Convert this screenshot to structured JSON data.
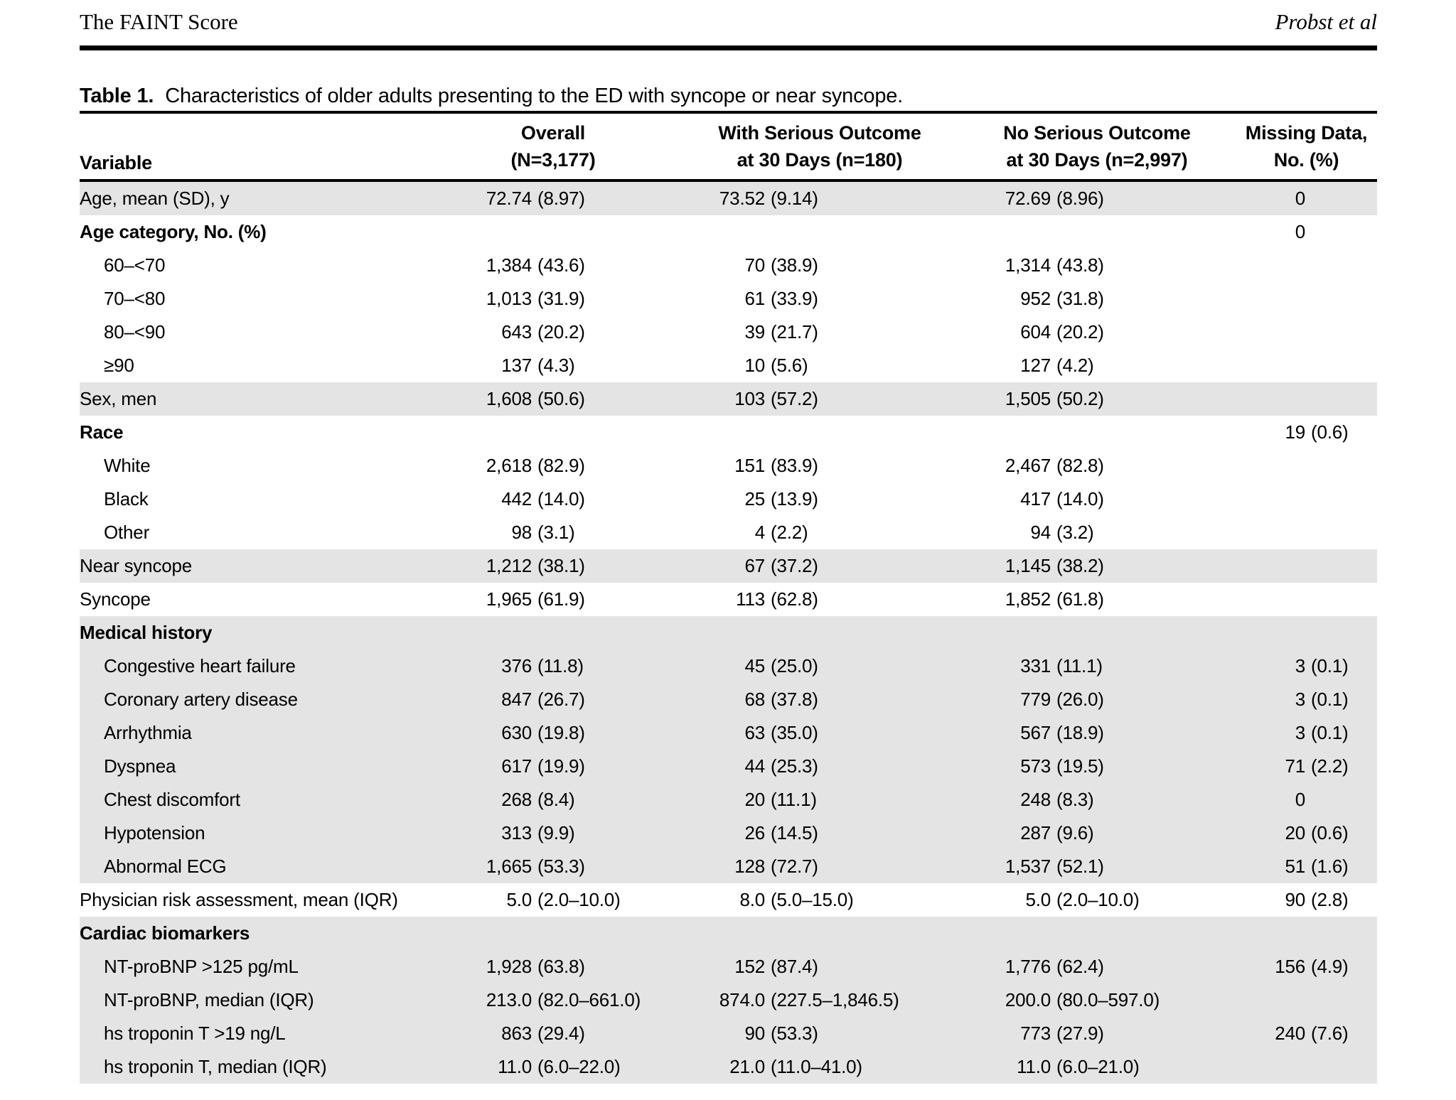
{
  "page": {
    "running_head_left": "The FAINT Score",
    "running_head_right": "Probst et al",
    "caption_label": "Table 1.",
    "caption_text": "Characteristics of older adults presenting to the ED with syncope or near syncope."
  },
  "colors": {
    "row_shade": "#e4e4e4",
    "rule": "#000000",
    "text": "#000000"
  },
  "table": {
    "columns": [
      {
        "line1": "",
        "line2": "Variable"
      },
      {
        "line1": "Overall",
        "line2": "(N=3,177)"
      },
      {
        "line1": "With Serious Outcome",
        "line2": "at 30 Days (n=180)"
      },
      {
        "line1": "No Serious Outcome",
        "line2": "at 30 Days (n=2,997)"
      },
      {
        "line1": "Missing Data,",
        "line2": "No. (%)"
      }
    ],
    "rows": [
      {
        "label": "Age, mean (SD), y",
        "bold": false,
        "indent": false,
        "shaded": true,
        "cells": [
          [
            "72.74",
            "(8.97)"
          ],
          [
            "73.52",
            "(9.14)"
          ],
          [
            "72.69",
            "(8.96)"
          ],
          [
            "0",
            ""
          ]
        ]
      },
      {
        "label": "Age category, No. (%)",
        "bold": true,
        "indent": false,
        "shaded": false,
        "cells": [
          [
            "",
            ""
          ],
          [
            "",
            ""
          ],
          [
            "",
            ""
          ],
          [
            "0",
            ""
          ]
        ]
      },
      {
        "label": "60–<70",
        "bold": false,
        "indent": true,
        "shaded": false,
        "cells": [
          [
            "1,384",
            "(43.6)"
          ],
          [
            "70",
            "(38.9)"
          ],
          [
            "1,314",
            "(43.8)"
          ],
          [
            "",
            ""
          ]
        ]
      },
      {
        "label": "70–<80",
        "bold": false,
        "indent": true,
        "shaded": false,
        "cells": [
          [
            "1,013",
            "(31.9)"
          ],
          [
            "61",
            "(33.9)"
          ],
          [
            "952",
            "(31.8)"
          ],
          [
            "",
            ""
          ]
        ]
      },
      {
        "label": "80–<90",
        "bold": false,
        "indent": true,
        "shaded": false,
        "cells": [
          [
            "643",
            "(20.2)"
          ],
          [
            "39",
            "(21.7)"
          ],
          [
            "604",
            "(20.2)"
          ],
          [
            "",
            ""
          ]
        ]
      },
      {
        "label": "≥90",
        "bold": false,
        "indent": true,
        "shaded": false,
        "cells": [
          [
            "137",
            "(4.3)"
          ],
          [
            "10",
            "(5.6)"
          ],
          [
            "127",
            "(4.2)"
          ],
          [
            "",
            ""
          ]
        ]
      },
      {
        "label": "Sex, men",
        "bold": false,
        "indent": false,
        "shaded": true,
        "cells": [
          [
            "1,608",
            "(50.6)"
          ],
          [
            "103",
            "(57.2)"
          ],
          [
            "1,505",
            "(50.2)"
          ],
          [
            "",
            ""
          ]
        ]
      },
      {
        "label": "Race",
        "bold": true,
        "indent": false,
        "shaded": false,
        "cells": [
          [
            "",
            ""
          ],
          [
            "",
            ""
          ],
          [
            "",
            ""
          ],
          [
            "19",
            "(0.6)"
          ]
        ]
      },
      {
        "label": "White",
        "bold": false,
        "indent": true,
        "shaded": false,
        "cells": [
          [
            "2,618",
            "(82.9)"
          ],
          [
            "151",
            "(83.9)"
          ],
          [
            "2,467",
            "(82.8)"
          ],
          [
            "",
            ""
          ]
        ]
      },
      {
        "label": "Black",
        "bold": false,
        "indent": true,
        "shaded": false,
        "cells": [
          [
            "442",
            "(14.0)"
          ],
          [
            "25",
            "(13.9)"
          ],
          [
            "417",
            "(14.0)"
          ],
          [
            "",
            ""
          ]
        ]
      },
      {
        "label": "Other",
        "bold": false,
        "indent": true,
        "shaded": false,
        "cells": [
          [
            "98",
            "(3.1)"
          ],
          [
            "4",
            "(2.2)"
          ],
          [
            "94",
            "(3.2)"
          ],
          [
            "",
            ""
          ]
        ]
      },
      {
        "label": "Near syncope",
        "bold": false,
        "indent": false,
        "shaded": true,
        "cells": [
          [
            "1,212",
            "(38.1)"
          ],
          [
            "67",
            "(37.2)"
          ],
          [
            "1,145",
            "(38.2)"
          ],
          [
            "",
            ""
          ]
        ]
      },
      {
        "label": "Syncope",
        "bold": false,
        "indent": false,
        "shaded": false,
        "cells": [
          [
            "1,965",
            "(61.9)"
          ],
          [
            "113",
            "(62.8)"
          ],
          [
            "1,852",
            "(61.8)"
          ],
          [
            "",
            ""
          ]
        ]
      },
      {
        "label": "Medical history",
        "bold": true,
        "indent": false,
        "shaded": true,
        "cells": [
          [
            "",
            ""
          ],
          [
            "",
            ""
          ],
          [
            "",
            ""
          ],
          [
            "",
            ""
          ]
        ]
      },
      {
        "label": "Congestive heart failure",
        "bold": false,
        "indent": true,
        "shaded": true,
        "cells": [
          [
            "376",
            "(11.8)"
          ],
          [
            "45",
            "(25.0)"
          ],
          [
            "331",
            "(11.1)"
          ],
          [
            "3",
            "(0.1)"
          ]
        ]
      },
      {
        "label": "Coronary artery disease",
        "bold": false,
        "indent": true,
        "shaded": true,
        "cells": [
          [
            "847",
            "(26.7)"
          ],
          [
            "68",
            "(37.8)"
          ],
          [
            "779",
            "(26.0)"
          ],
          [
            "3",
            "(0.1)"
          ]
        ]
      },
      {
        "label": "Arrhythmia",
        "bold": false,
        "indent": true,
        "shaded": true,
        "cells": [
          [
            "630",
            "(19.8)"
          ],
          [
            "63",
            "(35.0)"
          ],
          [
            "567",
            "(18.9)"
          ],
          [
            "3",
            "(0.1)"
          ]
        ]
      },
      {
        "label": "Dyspnea",
        "bold": false,
        "indent": true,
        "shaded": true,
        "cells": [
          [
            "617",
            "(19.9)"
          ],
          [
            "44",
            "(25.3)"
          ],
          [
            "573",
            "(19.5)"
          ],
          [
            "71",
            "(2.2)"
          ]
        ]
      },
      {
        "label": "Chest discomfort",
        "bold": false,
        "indent": true,
        "shaded": true,
        "cells": [
          [
            "268",
            "(8.4)"
          ],
          [
            "20",
            "(11.1)"
          ],
          [
            "248",
            "(8.3)"
          ],
          [
            "0",
            ""
          ]
        ]
      },
      {
        "label": "Hypotension",
        "bold": false,
        "indent": true,
        "shaded": true,
        "cells": [
          [
            "313",
            "(9.9)"
          ],
          [
            "26",
            "(14.5)"
          ],
          [
            "287",
            "(9.6)"
          ],
          [
            "20",
            "(0.6)"
          ]
        ]
      },
      {
        "label": "Abnormal ECG",
        "bold": false,
        "indent": true,
        "shaded": true,
        "cells": [
          [
            "1,665",
            "(53.3)"
          ],
          [
            "128",
            "(72.7)"
          ],
          [
            "1,537",
            "(52.1)"
          ],
          [
            "51",
            "(1.6)"
          ]
        ]
      },
      {
        "label": "Physician risk assessment, mean (IQR)",
        "bold": false,
        "indent": false,
        "shaded": false,
        "cells": [
          [
            "5.0",
            "(2.0–10.0)"
          ],
          [
            "8.0",
            "(5.0–15.0)"
          ],
          [
            "5.0",
            "(2.0–10.0)"
          ],
          [
            "90",
            "(2.8)"
          ]
        ]
      },
      {
        "label": "Cardiac biomarkers",
        "bold": true,
        "indent": false,
        "shaded": true,
        "cells": [
          [
            "",
            ""
          ],
          [
            "",
            ""
          ],
          [
            "",
            ""
          ],
          [
            "",
            ""
          ]
        ]
      },
      {
        "label": "NT-proBNP >125 pg/mL",
        "bold": false,
        "indent": true,
        "shaded": true,
        "cells": [
          [
            "1,928",
            "(63.8)"
          ],
          [
            "152",
            "(87.4)"
          ],
          [
            "1,776",
            "(62.4)"
          ],
          [
            "156",
            "(4.9)"
          ]
        ]
      },
      {
        "label": "NT-proBNP, median (IQR)",
        "bold": false,
        "indent": true,
        "shaded": true,
        "cells": [
          [
            "213.0",
            "(82.0–661.0)"
          ],
          [
            "874.0",
            "(227.5–1,846.5)"
          ],
          [
            "200.0",
            "(80.0–597.0)"
          ],
          [
            "",
            ""
          ]
        ]
      },
      {
        "label": "hs troponin T >19 ng/L",
        "bold": false,
        "indent": true,
        "shaded": true,
        "cells": [
          [
            "863",
            "(29.4)"
          ],
          [
            "90",
            "(53.3)"
          ],
          [
            "773",
            "(27.9)"
          ],
          [
            "240",
            "(7.6)"
          ]
        ]
      },
      {
        "label": "hs troponin T, median (IQR)",
        "bold": false,
        "indent": true,
        "shaded": true,
        "cells": [
          [
            "11.0",
            "(6.0–22.0)"
          ],
          [
            "21.0",
            "(11.0–41.0)"
          ],
          [
            "11.0",
            "(6.0–21.0)"
          ],
          [
            "",
            ""
          ]
        ]
      }
    ]
  }
}
